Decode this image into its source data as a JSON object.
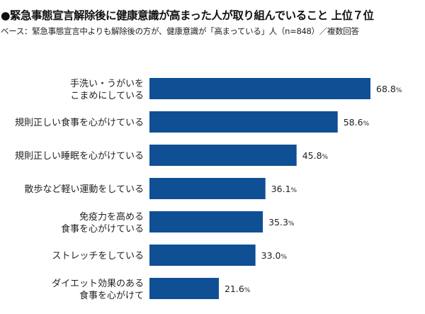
{
  "chart_data": {
    "type": "bar",
    "orientation": "horizontal",
    "title": "●緊急事態宣言解除後に健康意識が高まった人が取り組んでいること 上位７位",
    "subtitle": "ベース：緊急事態宣言中よりも解除後の方が、健康意識が「高まっている」人（n=848）／複数回答",
    "categories": [
      [
        "手洗い・うがいを",
        "こまめにしている"
      ],
      [
        "規則正しい食事を心がけている"
      ],
      [
        "規則正しい睡眠を心がけている"
      ],
      [
        "散歩など軽い運動をしている"
      ],
      [
        "免疫力を高める",
        "食事を心がけている"
      ],
      [
        "ストレッチをしている"
      ],
      [
        "ダイエット効果のある",
        "食事を心がけて"
      ]
    ],
    "values": [
      68.8,
      58.6,
      45.8,
      36.1,
      35.3,
      33.0,
      21.6
    ],
    "unit": "%",
    "xlim": [
      0,
      68.8
    ],
    "bar_color": "#0f4f94",
    "grid": false
  }
}
